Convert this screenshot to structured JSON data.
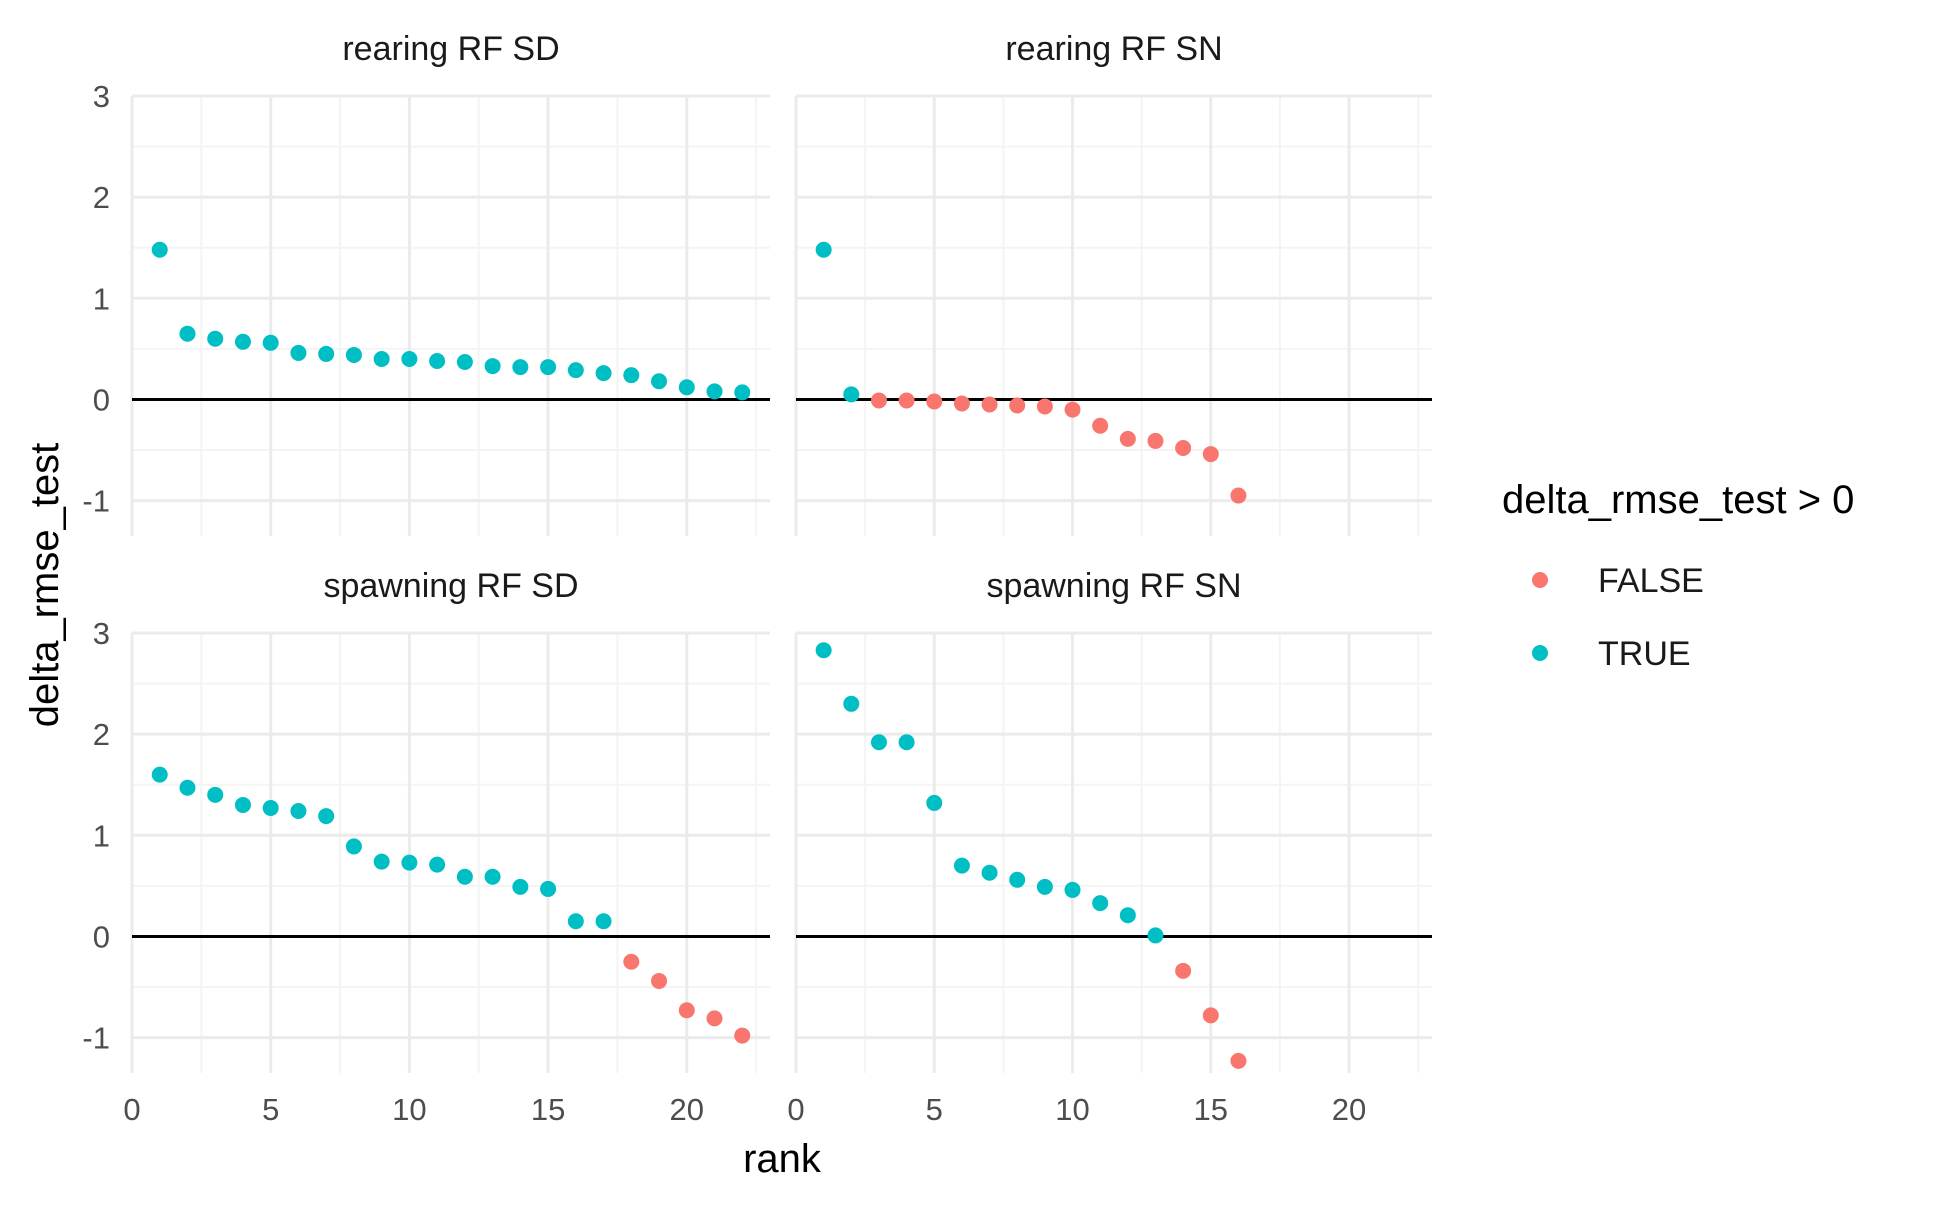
{
  "chart_data": {
    "type": "scatter",
    "xlabel": "rank",
    "ylabel": "delta_rmse_test",
    "xlim": [
      0,
      23
    ],
    "ylim": [
      -1.35,
      3
    ],
    "x_ticks": [
      0,
      5,
      10,
      15,
      20
    ],
    "y_ticks": [
      -1,
      0,
      1,
      2,
      3
    ],
    "hline": 0,
    "grid": true,
    "legend": {
      "title": "delta_rmse_test > 0",
      "position": "right",
      "entries": [
        {
          "label": "FALSE",
          "color": "#F8766D"
        },
        {
          "label": "TRUE",
          "color": "#00BFC4"
        }
      ]
    },
    "panels": [
      {
        "title": "rearing RF SD",
        "x": [
          1,
          2,
          3,
          4,
          5,
          6,
          7,
          8,
          9,
          10,
          11,
          12,
          13,
          14,
          15,
          16,
          17,
          18,
          19,
          20,
          21,
          22
        ],
        "y": [
          1.48,
          0.65,
          0.6,
          0.57,
          0.56,
          0.46,
          0.45,
          0.44,
          0.4,
          0.4,
          0.38,
          0.37,
          0.33,
          0.32,
          0.32,
          0.29,
          0.26,
          0.24,
          0.18,
          0.12,
          0.08,
          0.07
        ]
      },
      {
        "title": "rearing RF SN",
        "x": [
          1,
          2,
          3,
          4,
          5,
          6,
          7,
          8,
          9,
          10,
          11,
          12,
          13,
          14,
          15,
          16
        ],
        "y": [
          1.48,
          0.05,
          -0.01,
          -0.01,
          -0.02,
          -0.04,
          -0.05,
          -0.06,
          -0.07,
          -0.1,
          -0.26,
          -0.39,
          -0.41,
          -0.48,
          -0.54,
          -0.95
        ]
      },
      {
        "title": "spawning RF SD",
        "x": [
          1,
          2,
          3,
          4,
          5,
          6,
          7,
          8,
          9,
          10,
          11,
          12,
          13,
          14,
          15,
          16,
          17,
          18,
          19,
          20,
          21,
          22
        ],
        "y": [
          1.6,
          1.47,
          1.4,
          1.3,
          1.27,
          1.24,
          1.19,
          0.89,
          0.74,
          0.73,
          0.71,
          0.59,
          0.59,
          0.49,
          0.47,
          0.15,
          0.15,
          -0.25,
          -0.44,
          -0.73,
          -0.81,
          -0.98
        ]
      },
      {
        "title": "spawning RF SN",
        "x": [
          1,
          2,
          3,
          4,
          5,
          6,
          7,
          8,
          9,
          10,
          11,
          12,
          13,
          14,
          15,
          16
        ],
        "y": [
          2.83,
          2.3,
          1.92,
          1.92,
          1.32,
          0.7,
          0.63,
          0.56,
          0.49,
          0.46,
          0.33,
          0.21,
          0.01,
          -0.34,
          -0.78,
          -1.23
        ]
      }
    ]
  }
}
